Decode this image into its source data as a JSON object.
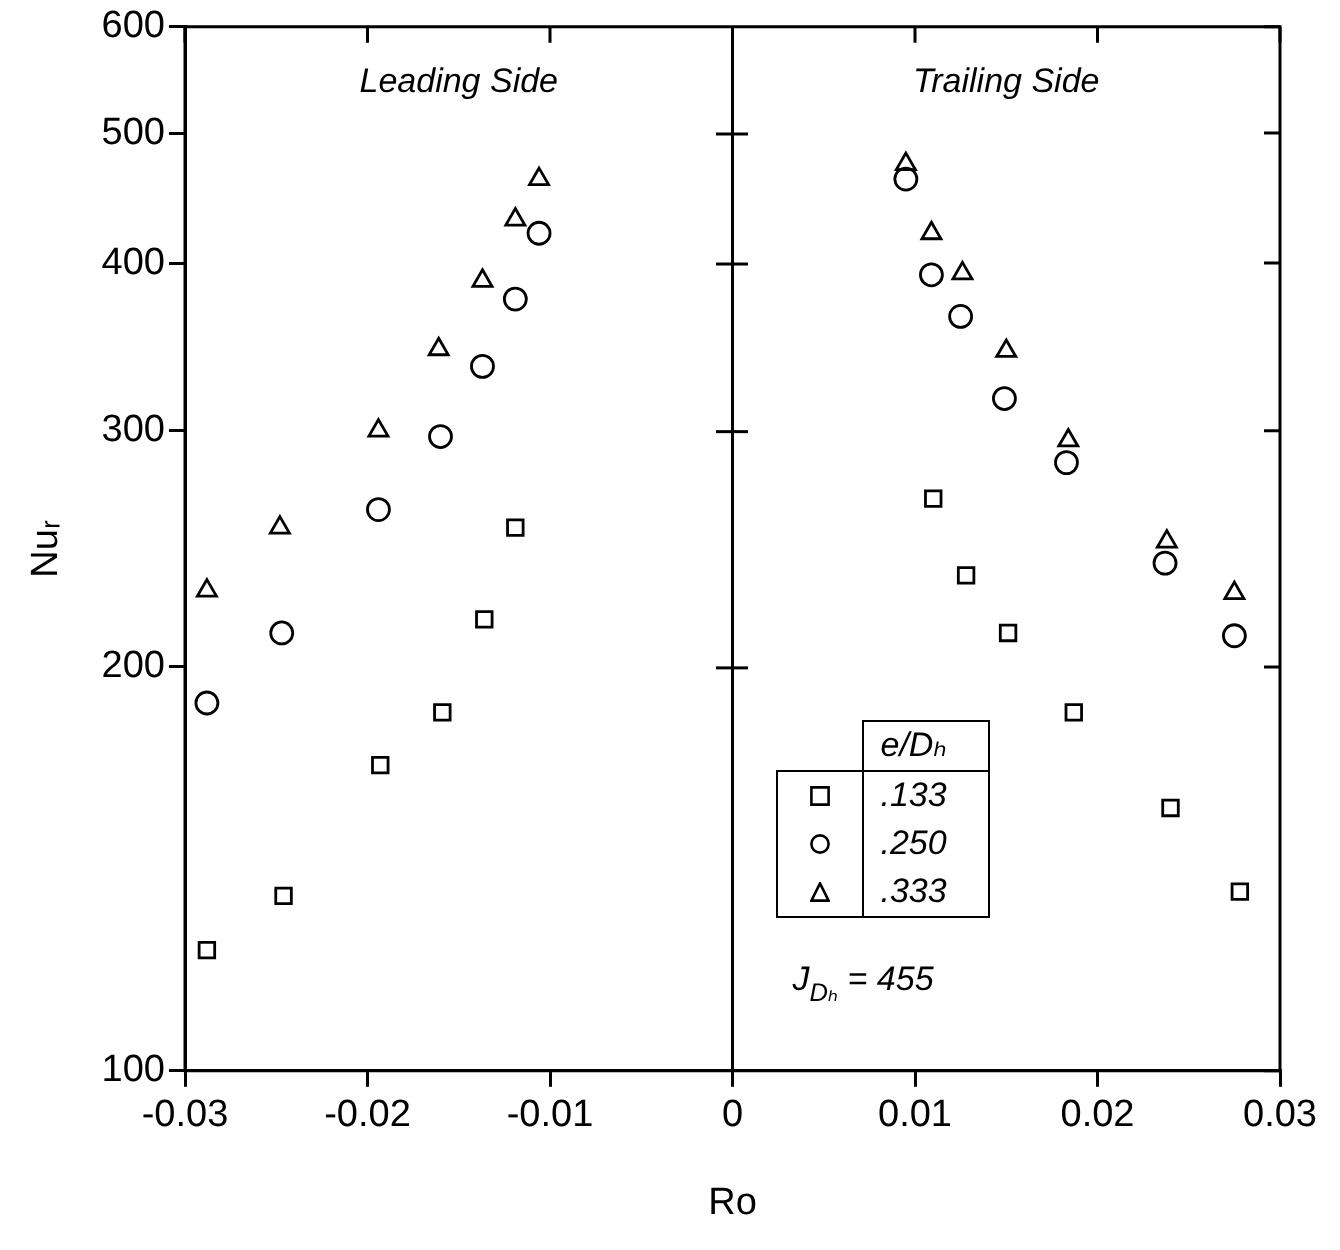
{
  "chart_data": {
    "type": "scatter",
    "xlabel": "Ro",
    "ylabel": "Nuᵣ",
    "legend_title": "e/Dₕ",
    "annotations": [
      "Leading Side",
      "Trailing Side",
      "J$_{Dₕ}$ = 455"
    ],
    "log": "y",
    "xlim": [
      -0.03,
      0.03
    ],
    "xticks": [
      -0.03,
      -0.02,
      -0.01,
      0,
      0.01,
      0.02,
      0.03
    ],
    "ylim": [
      100,
      600
    ],
    "yticks": [
      100,
      200,
      300,
      400,
      500,
      600
    ],
    "grid": false,
    "legend": "bottom",
    "ref_lines": [
      {
        "axis": "x",
        "value": 0,
        "color": "#000000"
      }
    ],
    "series": [
      {
        "name": ".133",
        "color": "#000000",
        "marker": "square",
        "x": [
          -0.0288,
          -0.0246,
          -0.0193,
          -0.0159,
          -0.0136,
          -0.0119,
          0.011,
          0.0128,
          0.0151,
          0.0187,
          0.024,
          0.0278
        ],
        "values": [
          123,
          135,
          169,
          185,
          217,
          254,
          267,
          234,
          212,
          185,
          157,
          136
        ]
      },
      {
        "name": ".250",
        "color": "#000000",
        "marker": "circle",
        "x": [
          -0.0288,
          -0.0247,
          -0.0194,
          -0.016,
          -0.0137,
          -0.0119,
          -0.0106,
          0.0095,
          0.0109,
          0.0125,
          0.0149,
          0.0183,
          0.0237,
          0.0275
        ],
        "values": [
          188,
          212,
          262,
          297,
          335,
          376,
          421,
          462,
          392,
          365,
          317,
          284,
          239,
          211
        ]
      },
      {
        "name": ".333",
        "color": "#000000",
        "marker": "triangle",
        "x": [
          -0.0288,
          -0.0248,
          -0.0194,
          -0.0161,
          -0.0137,
          -0.0119,
          -0.0106,
          0.0095,
          0.0109,
          0.0126,
          0.015,
          0.0184,
          0.0238,
          0.0275
        ],
        "values": [
          228,
          254,
          300,
          345,
          388,
          431,
          462,
          474,
          421,
          393,
          344,
          295,
          248,
          227
        ]
      }
    ]
  }
}
